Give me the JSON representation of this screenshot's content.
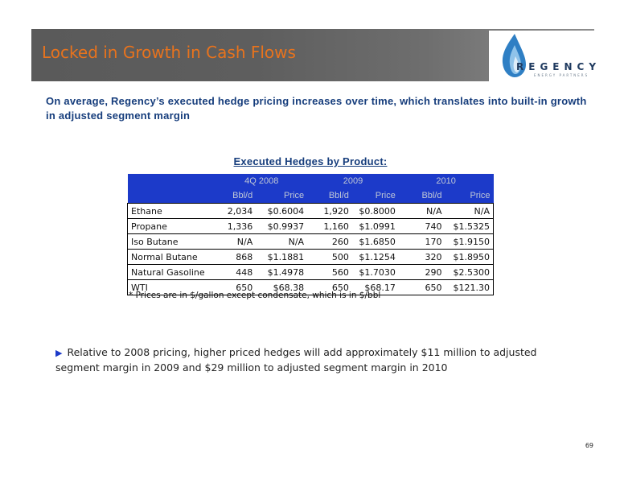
{
  "header": {
    "title": "Locked in Growth in Cash Flows",
    "logo_text": "REGENCY",
    "logo_subtext": "ENERGY PARTNERS"
  },
  "intro": "On average, Regency’s executed hedge pricing increases over time, which translates into built-in growth in adjusted segment margin",
  "table": {
    "title": "Executed Hedges by Product:",
    "years": [
      "4Q 2008",
      "2009",
      "2010"
    ],
    "subheaders": [
      "Bbl/d",
      "Price",
      "Bbl/d",
      "Price",
      "Bbl/d",
      "Price"
    ],
    "rows": [
      {
        "product": "Ethane",
        "cells": [
          "2,034",
          "$0.6004",
          "1,920",
          "$0.8000",
          "N/A",
          "N/A"
        ]
      },
      {
        "product": "Propane",
        "cells": [
          "1,336",
          "$0.9937",
          "1,160",
          "$1.0991",
          "740",
          "$1.5325"
        ]
      },
      {
        "product": "Iso Butane",
        "cells": [
          "N/A",
          "N/A",
          "260",
          "$1.6850",
          "170",
          "$1.9150"
        ]
      },
      {
        "product": "Normal Butane",
        "cells": [
          "868",
          "$1.1881",
          "500",
          "$1.1254",
          "320",
          "$1.8950"
        ]
      },
      {
        "product": "Natural Gasoline",
        "cells": [
          "448",
          "$1.4978",
          "560",
          "$1.7030",
          "290",
          "$2.5300"
        ]
      },
      {
        "product": "WTI",
        "cells": [
          "650",
          "$68.38",
          "650",
          "$68.17",
          "650",
          "$121.30"
        ]
      }
    ],
    "footnote": "* Prices are in $/gallon except condensate, which is in $/bbl"
  },
  "bullet": {
    "icon": "triangle-right-icon",
    "text": "Relative to 2008 pricing, higher priced hedges will add approximately $11 million to adjusted segment margin in 2009 and $29 million to adjusted segment margin in 2010"
  },
  "page_number": "69",
  "colors": {
    "title_orange": "#e8731d",
    "header_blue": "#1c3ac9",
    "text_navy": "#163d7c"
  }
}
